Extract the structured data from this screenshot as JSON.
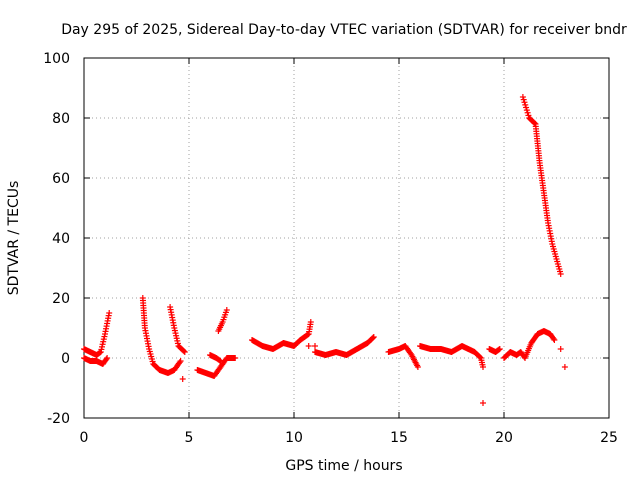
{
  "chart_data": {
    "type": "scatter",
    "title": "Day 295 of 2025, Sidereal Day-to-day VTEC variation (SDTVAR) for receiver bndr",
    "xlabel": "GPS time / hours",
    "ylabel": "SDTVAR / TECUs",
    "xlim": [
      0,
      25
    ],
    "ylim": [
      -20,
      100
    ],
    "xticks": [
      0,
      5,
      10,
      15,
      20,
      25
    ],
    "yticks": [
      -20,
      0,
      20,
      40,
      60,
      80,
      100
    ],
    "grid": true,
    "marker": "+",
    "color": "#ff0000",
    "segments": [
      {
        "points": [
          [
            0.0,
            3
          ],
          [
            0.3,
            2
          ],
          [
            0.6,
            1
          ],
          [
            0.8,
            2
          ],
          [
            1.0,
            8
          ],
          [
            1.2,
            15
          ]
        ]
      },
      {
        "points": [
          [
            0.0,
            0
          ],
          [
            0.3,
            -1
          ],
          [
            0.6,
            -1
          ],
          [
            0.9,
            -2
          ],
          [
            1.1,
            0
          ]
        ]
      },
      {
        "points": [
          [
            2.8,
            20
          ],
          [
            2.9,
            10
          ],
          [
            3.1,
            3
          ],
          [
            3.3,
            -2
          ],
          [
            3.6,
            -4
          ],
          [
            4.0,
            -5
          ],
          [
            4.3,
            -4
          ],
          [
            4.6,
            -1
          ]
        ]
      },
      {
        "points": [
          [
            4.1,
            17
          ],
          [
            4.3,
            10
          ],
          [
            4.5,
            4
          ],
          [
            4.8,
            2
          ]
        ]
      },
      {
        "points": [
          [
            5.4,
            -4
          ],
          [
            5.8,
            -5
          ],
          [
            6.2,
            -6
          ],
          [
            6.5,
            -3
          ],
          [
            6.8,
            0
          ],
          [
            7.2,
            0
          ]
        ]
      },
      {
        "points": [
          [
            6.0,
            1
          ],
          [
            6.3,
            0
          ],
          [
            6.5,
            -1
          ]
        ]
      },
      {
        "points": [
          [
            6.4,
            9
          ],
          [
            6.6,
            12
          ],
          [
            6.8,
            16
          ]
        ]
      },
      {
        "points": [
          [
            8.0,
            6
          ],
          [
            8.5,
            4
          ],
          [
            9.0,
            3
          ],
          [
            9.5,
            5
          ],
          [
            10.0,
            4
          ],
          [
            10.3,
            6
          ],
          [
            10.7,
            8
          ],
          [
            10.8,
            12
          ]
        ]
      },
      {
        "points": [
          [
            11.0,
            2
          ],
          [
            11.5,
            1
          ],
          [
            12.0,
            2
          ],
          [
            12.5,
            1
          ],
          [
            13.0,
            3
          ],
          [
            13.5,
            5
          ],
          [
            13.8,
            7
          ]
        ]
      },
      {
        "points": [
          [
            14.5,
            2
          ],
          [
            15.0,
            3
          ],
          [
            15.3,
            4
          ],
          [
            15.6,
            1
          ],
          [
            15.9,
            -3
          ]
        ]
      },
      {
        "points": [
          [
            16.0,
            4
          ],
          [
            16.5,
            3
          ],
          [
            17.0,
            3
          ],
          [
            17.5,
            2
          ],
          [
            18.0,
            4
          ],
          [
            18.3,
            3
          ],
          [
            18.6,
            2
          ],
          [
            18.9,
            0
          ],
          [
            19.0,
            -3
          ]
        ]
      },
      {
        "points": [
          [
            19.3,
            3
          ],
          [
            19.6,
            2
          ],
          [
            19.8,
            3
          ]
        ]
      },
      {
        "points": [
          [
            20.0,
            0
          ],
          [
            20.3,
            2
          ],
          [
            20.6,
            1
          ],
          [
            20.8,
            2
          ],
          [
            21.0,
            0
          ],
          [
            21.3,
            5
          ],
          [
            21.6,
            8
          ],
          [
            21.9,
            9
          ],
          [
            22.2,
            8
          ],
          [
            22.4,
            6
          ]
        ]
      },
      {
        "points": [
          [
            20.9,
            87
          ],
          [
            21.2,
            80
          ],
          [
            21.5,
            78
          ],
          [
            21.7,
            65
          ],
          [
            21.9,
            55
          ],
          [
            22.1,
            45
          ],
          [
            22.3,
            38
          ],
          [
            22.5,
            33
          ],
          [
            22.7,
            28
          ]
        ]
      }
    ],
    "outliers": [
      [
        4.7,
        -7
      ],
      [
        10.7,
        4
      ],
      [
        11.0,
        4
      ],
      [
        19.0,
        -15
      ],
      [
        22.7,
        3
      ],
      [
        22.9,
        -3
      ]
    ]
  }
}
